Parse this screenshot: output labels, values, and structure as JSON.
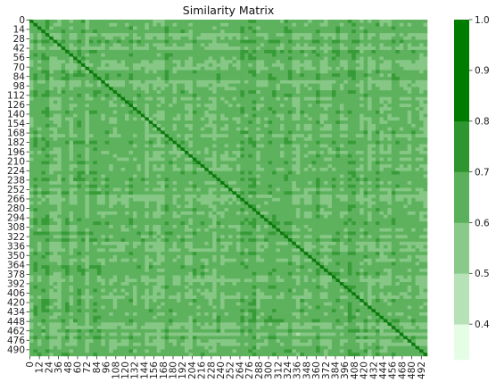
{
  "chart_data": {
    "type": "heatmap",
    "title": "Similarity Matrix",
    "xlabel": "",
    "ylabel": "",
    "n": 500,
    "tick_step": 12,
    "x_ticks": [
      "0",
      "12",
      "24",
      "36",
      "48",
      "60",
      "72",
      "84",
      "96",
      "108",
      "120",
      "132",
      "144",
      "156",
      "168",
      "180",
      "192",
      "204",
      "216",
      "228",
      "240",
      "252",
      "264",
      "276",
      "288",
      "300",
      "312",
      "324",
      "336",
      "348",
      "360",
      "372",
      "384",
      "396",
      "408",
      "420",
      "432",
      "444",
      "456",
      "468",
      "480",
      "492"
    ],
    "y_ticks": [
      "0",
      "14",
      "28",
      "42",
      "56",
      "70",
      "84",
      "98",
      "112",
      "126",
      "140",
      "154",
      "168",
      "182",
      "196",
      "210",
      "224",
      "238",
      "252",
      "266",
      "280",
      "294",
      "308",
      "322",
      "336",
      "350",
      "364",
      "378",
      "392",
      "406",
      "420",
      "434",
      "448",
      "462",
      "476",
      "490"
    ],
    "colorbar": {
      "ticks": [
        "0.4",
        "0.5",
        "0.6",
        "0.7",
        "0.8",
        "0.9",
        "1.0"
      ],
      "range": [
        0.33,
        1.0
      ],
      "bands": [
        {
          "from": 0.33,
          "to": 0.4,
          "color": "#e5fce5"
        },
        {
          "from": 0.4,
          "to": 0.5,
          "color": "#b7e1b7"
        },
        {
          "from": 0.5,
          "to": 0.6,
          "color": "#89c989"
        },
        {
          "from": 0.6,
          "to": 0.7,
          "color": "#5bb05b"
        },
        {
          "from": 0.7,
          "to": 0.8,
          "color": "#2e962e"
        },
        {
          "from": 0.8,
          "to": 1.0,
          "color": "#007d00"
        }
      ]
    },
    "diagonal_value": 1.0,
    "typical_offdiagonal_range": [
      0.55,
      0.7
    ],
    "grid": false
  }
}
